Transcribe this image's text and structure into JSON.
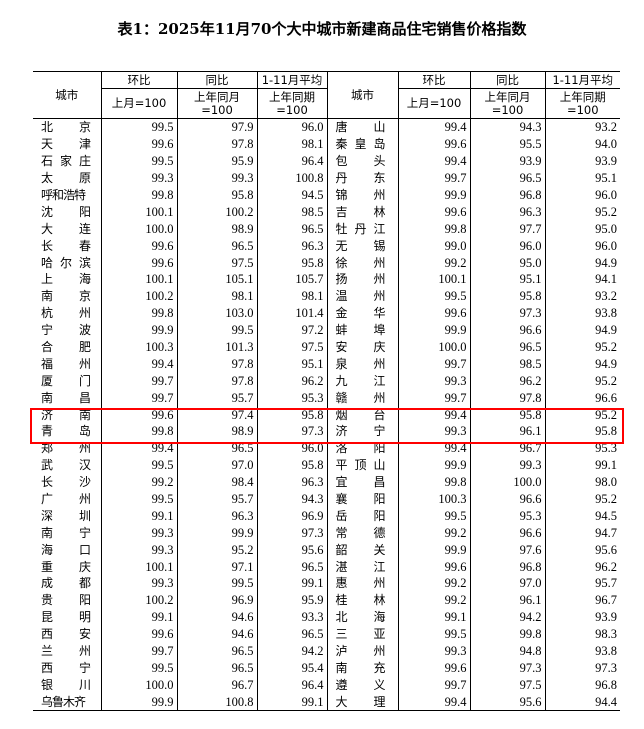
{
  "title": "表1：2025年11月70个大中城市新建商品住宅销售价格指数",
  "header": {
    "city": "城市",
    "mom": "环比",
    "yoy": "同比",
    "avg": "1-11月平均",
    "mom_base": "上月=100",
    "yoy_base": "上年同月\n=100",
    "avg_base": "上年同期\n=100"
  },
  "highlight_color": "#ff0000",
  "highlighted_rows": [
    "济南",
    "青岛"
  ],
  "rows": [
    {
      "l": {
        "city": "北京",
        "mom": "99.5",
        "yoy": "97.9",
        "avg": "96.0"
      },
      "r": {
        "city": "唐山",
        "mom": "99.4",
        "yoy": "94.3",
        "avg": "93.2"
      }
    },
    {
      "l": {
        "city": "天津",
        "mom": "99.6",
        "yoy": "97.8",
        "avg": "98.1"
      },
      "r": {
        "city": "秦皇岛",
        "mom": "99.6",
        "yoy": "95.5",
        "avg": "94.0"
      }
    },
    {
      "l": {
        "city": "石家庄",
        "mom": "99.5",
        "yoy": "95.9",
        "avg": "96.4"
      },
      "r": {
        "city": "包头",
        "mom": "99.4",
        "yoy": "93.9",
        "avg": "93.9"
      }
    },
    {
      "l": {
        "city": "太原",
        "mom": "99.3",
        "yoy": "99.3",
        "avg": "100.8"
      },
      "r": {
        "city": "丹东",
        "mom": "99.7",
        "yoy": "96.5",
        "avg": "95.1"
      }
    },
    {
      "l": {
        "city": "呼和浩特",
        "mom": "99.8",
        "yoy": "95.8",
        "avg": "94.5"
      },
      "r": {
        "city": "锦州",
        "mom": "99.9",
        "yoy": "96.8",
        "avg": "96.0"
      }
    },
    {
      "l": {
        "city": "沈阳",
        "mom": "100.1",
        "yoy": "100.2",
        "avg": "98.5"
      },
      "r": {
        "city": "吉林",
        "mom": "99.6",
        "yoy": "96.3",
        "avg": "95.2"
      }
    },
    {
      "l": {
        "city": "大连",
        "mom": "100.0",
        "yoy": "98.9",
        "avg": "96.5"
      },
      "r": {
        "city": "牡丹江",
        "mom": "99.8",
        "yoy": "97.7",
        "avg": "95.0"
      }
    },
    {
      "l": {
        "city": "长春",
        "mom": "99.6",
        "yoy": "96.5",
        "avg": "96.3"
      },
      "r": {
        "city": "无锡",
        "mom": "99.0",
        "yoy": "96.0",
        "avg": "96.0"
      }
    },
    {
      "l": {
        "city": "哈尔滨",
        "mom": "99.6",
        "yoy": "97.5",
        "avg": "95.8"
      },
      "r": {
        "city": "徐州",
        "mom": "99.2",
        "yoy": "95.0",
        "avg": "94.9"
      }
    },
    {
      "l": {
        "city": "上海",
        "mom": "100.1",
        "yoy": "105.1",
        "avg": "105.7"
      },
      "r": {
        "city": "扬州",
        "mom": "100.1",
        "yoy": "95.1",
        "avg": "94.1"
      }
    },
    {
      "l": {
        "city": "南京",
        "mom": "100.2",
        "yoy": "98.1",
        "avg": "98.1"
      },
      "r": {
        "city": "温州",
        "mom": "99.5",
        "yoy": "95.8",
        "avg": "93.2"
      }
    },
    {
      "l": {
        "city": "杭州",
        "mom": "99.8",
        "yoy": "103.0",
        "avg": "101.4"
      },
      "r": {
        "city": "金华",
        "mom": "99.6",
        "yoy": "97.3",
        "avg": "93.8"
      }
    },
    {
      "l": {
        "city": "宁波",
        "mom": "99.9",
        "yoy": "99.5",
        "avg": "97.2"
      },
      "r": {
        "city": "蚌埠",
        "mom": "99.9",
        "yoy": "96.6",
        "avg": "94.9"
      }
    },
    {
      "l": {
        "city": "合肥",
        "mom": "100.3",
        "yoy": "101.3",
        "avg": "97.5"
      },
      "r": {
        "city": "安庆",
        "mom": "100.0",
        "yoy": "96.5",
        "avg": "95.2"
      }
    },
    {
      "l": {
        "city": "福州",
        "mom": "99.4",
        "yoy": "97.8",
        "avg": "95.1"
      },
      "r": {
        "city": "泉州",
        "mom": "99.7",
        "yoy": "98.5",
        "avg": "94.9"
      }
    },
    {
      "l": {
        "city": "厦门",
        "mom": "99.7",
        "yoy": "97.8",
        "avg": "96.2"
      },
      "r": {
        "city": "九江",
        "mom": "99.3",
        "yoy": "96.2",
        "avg": "95.2"
      }
    },
    {
      "l": {
        "city": "南昌",
        "mom": "99.7",
        "yoy": "95.7",
        "avg": "95.3"
      },
      "r": {
        "city": "赣州",
        "mom": "99.7",
        "yoy": "97.8",
        "avg": "96.6"
      }
    },
    {
      "l": {
        "city": "济南",
        "mom": "99.6",
        "yoy": "97.4",
        "avg": "95.8"
      },
      "r": {
        "city": "烟台",
        "mom": "99.4",
        "yoy": "95.8",
        "avg": "95.2"
      }
    },
    {
      "l": {
        "city": "青岛",
        "mom": "99.8",
        "yoy": "98.9",
        "avg": "97.3"
      },
      "r": {
        "city": "济宁",
        "mom": "99.3",
        "yoy": "96.1",
        "avg": "95.8"
      }
    },
    {
      "l": {
        "city": "郑州",
        "mom": "99.4",
        "yoy": "96.5",
        "avg": "96.0"
      },
      "r": {
        "city": "洛阳",
        "mom": "99.4",
        "yoy": "96.7",
        "avg": "95.3"
      }
    },
    {
      "l": {
        "city": "武汉",
        "mom": "99.5",
        "yoy": "97.0",
        "avg": "95.8"
      },
      "r": {
        "city": "平顶山",
        "mom": "99.9",
        "yoy": "99.3",
        "avg": "99.1"
      }
    },
    {
      "l": {
        "city": "长沙",
        "mom": "99.2",
        "yoy": "98.4",
        "avg": "96.3"
      },
      "r": {
        "city": "宜昌",
        "mom": "99.8",
        "yoy": "100.0",
        "avg": "98.0"
      }
    },
    {
      "l": {
        "city": "广州",
        "mom": "99.5",
        "yoy": "95.7",
        "avg": "94.3"
      },
      "r": {
        "city": "襄阳",
        "mom": "100.3",
        "yoy": "96.6",
        "avg": "95.2"
      }
    },
    {
      "l": {
        "city": "深圳",
        "mom": "99.1",
        "yoy": "96.3",
        "avg": "96.9"
      },
      "r": {
        "city": "岳阳",
        "mom": "99.5",
        "yoy": "95.3",
        "avg": "94.5"
      }
    },
    {
      "l": {
        "city": "南宁",
        "mom": "99.3",
        "yoy": "99.9",
        "avg": "97.3"
      },
      "r": {
        "city": "常德",
        "mom": "99.2",
        "yoy": "96.6",
        "avg": "94.7"
      }
    },
    {
      "l": {
        "city": "海口",
        "mom": "99.3",
        "yoy": "95.2",
        "avg": "95.6"
      },
      "r": {
        "city": "韶关",
        "mom": "99.9",
        "yoy": "97.6",
        "avg": "95.6"
      }
    },
    {
      "l": {
        "city": "重庆",
        "mom": "100.1",
        "yoy": "97.1",
        "avg": "96.5"
      },
      "r": {
        "city": "湛江",
        "mom": "99.6",
        "yoy": "96.8",
        "avg": "96.2"
      }
    },
    {
      "l": {
        "city": "成都",
        "mom": "99.3",
        "yoy": "99.5",
        "avg": "99.1"
      },
      "r": {
        "city": "惠州",
        "mom": "99.2",
        "yoy": "97.0",
        "avg": "95.7"
      }
    },
    {
      "l": {
        "city": "贵阳",
        "mom": "100.2",
        "yoy": "96.9",
        "avg": "95.9"
      },
      "r": {
        "city": "桂林",
        "mom": "99.2",
        "yoy": "96.1",
        "avg": "96.7"
      }
    },
    {
      "l": {
        "city": "昆明",
        "mom": "99.1",
        "yoy": "94.6",
        "avg": "93.3"
      },
      "r": {
        "city": "北海",
        "mom": "99.1",
        "yoy": "94.2",
        "avg": "93.9"
      }
    },
    {
      "l": {
        "city": "西安",
        "mom": "99.6",
        "yoy": "94.6",
        "avg": "96.5"
      },
      "r": {
        "city": "三亚",
        "mom": "99.5",
        "yoy": "99.8",
        "avg": "98.3"
      }
    },
    {
      "l": {
        "city": "兰州",
        "mom": "99.7",
        "yoy": "96.5",
        "avg": "94.2"
      },
      "r": {
        "city": "泸州",
        "mom": "99.3",
        "yoy": "94.8",
        "avg": "93.8"
      }
    },
    {
      "l": {
        "city": "西宁",
        "mom": "99.5",
        "yoy": "96.5",
        "avg": "95.4"
      },
      "r": {
        "city": "南充",
        "mom": "99.6",
        "yoy": "97.3",
        "avg": "97.3"
      }
    },
    {
      "l": {
        "city": "银川",
        "mom": "100.0",
        "yoy": "96.7",
        "avg": "96.4"
      },
      "r": {
        "city": "遵义",
        "mom": "99.7",
        "yoy": "97.5",
        "avg": "96.8"
      }
    },
    {
      "l": {
        "city": "乌鲁木齐",
        "mom": "99.9",
        "yoy": "100.8",
        "avg": "99.1"
      },
      "r": {
        "city": "大理",
        "mom": "99.4",
        "yoy": "95.6",
        "avg": "94.4"
      }
    }
  ]
}
